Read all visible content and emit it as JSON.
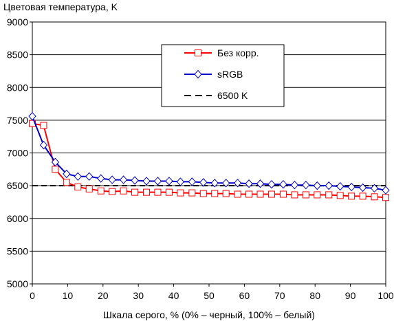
{
  "chart_data": {
    "type": "line",
    "title": "Цветовая температура, K",
    "xlabel": "Шкала серого, % (0% – черный, 100% – белый)",
    "ylabel": "",
    "xlim": [
      0,
      100
    ],
    "ylim": [
      5000,
      9000
    ],
    "xticks": [
      0,
      10,
      20,
      30,
      40,
      50,
      60,
      70,
      80,
      90,
      100
    ],
    "yticks": [
      5000,
      5500,
      6000,
      6500,
      7000,
      7500,
      8000,
      8500,
      9000
    ],
    "grid": "horizontal",
    "legend_position": "upper-center-right",
    "series": [
      {
        "name": "Без корр.",
        "color": "#ff0000",
        "marker": "square",
        "x": [
          0,
          3.2,
          6.5,
          9.7,
          12.9,
          16.1,
          19.4,
          22.6,
          25.8,
          29.0,
          32.3,
          35.5,
          38.7,
          41.9,
          45.2,
          48.4,
          51.6,
          54.8,
          58.1,
          61.3,
          64.5,
          67.7,
          71.0,
          74.2,
          77.4,
          80.6,
          83.9,
          87.1,
          90.3,
          93.5,
          96.8,
          100
        ],
        "values": [
          7450,
          7420,
          6750,
          6550,
          6480,
          6450,
          6420,
          6410,
          6420,
          6400,
          6400,
          6400,
          6400,
          6390,
          6390,
          6380,
          6380,
          6380,
          6370,
          6370,
          6370,
          6370,
          6370,
          6360,
          6360,
          6360,
          6360,
          6350,
          6340,
          6340,
          6330,
          6320
        ]
      },
      {
        "name": "sRGB",
        "color": "#0000cc",
        "marker": "diamond",
        "x": [
          0,
          3.2,
          6.5,
          9.7,
          12.9,
          16.1,
          19.4,
          22.6,
          25.8,
          29.0,
          32.3,
          35.5,
          38.7,
          41.9,
          45.2,
          48.4,
          51.6,
          54.8,
          58.1,
          61.3,
          64.5,
          67.7,
          71.0,
          74.2,
          77.4,
          80.6,
          83.9,
          87.1,
          90.3,
          93.5,
          96.8,
          100
        ],
        "values": [
          7560,
          7120,
          6860,
          6680,
          6640,
          6640,
          6610,
          6590,
          6590,
          6580,
          6570,
          6570,
          6570,
          6560,
          6560,
          6550,
          6540,
          6540,
          6540,
          6530,
          6530,
          6520,
          6520,
          6510,
          6510,
          6500,
          6500,
          6490,
          6480,
          6470,
          6460,
          6430
        ]
      },
      {
        "name": "6500 K",
        "color": "#000000",
        "dashed": true,
        "x": [
          0,
          100
        ],
        "values": [
          6500,
          6500
        ]
      }
    ]
  }
}
